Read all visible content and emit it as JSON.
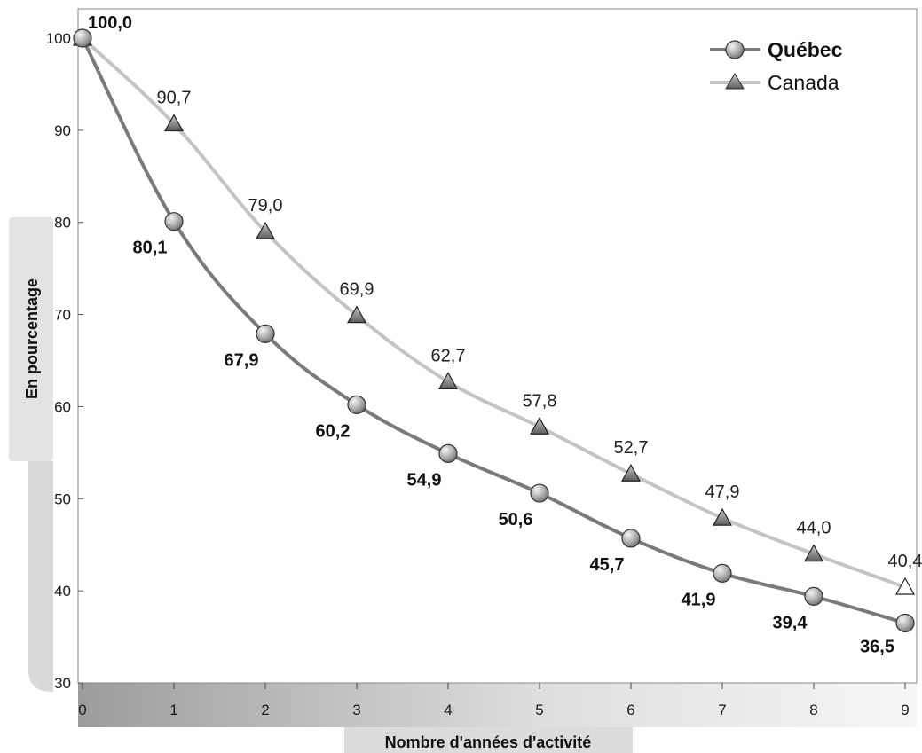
{
  "chart_data": {
    "type": "line",
    "title": "",
    "xlabel": "Nombre d'années d'activité",
    "ylabel": "En pourcentage",
    "x": [
      0,
      1,
      2,
      3,
      4,
      5,
      6,
      7,
      8,
      9
    ],
    "xlim": [
      0,
      9
    ],
    "ylim": [
      30,
      100
    ],
    "yticks": [
      30,
      40,
      50,
      60,
      70,
      80,
      90,
      100
    ],
    "grid": false,
    "legend_position": "top-right",
    "series": [
      {
        "name": "Québec",
        "marker": "circle",
        "color": "#7a7a7a",
        "values": [
          100.0,
          80.1,
          67.9,
          60.2,
          54.9,
          50.6,
          45.7,
          41.9,
          39.4,
          36.5
        ],
        "labels": [
          "100,0",
          "80,1",
          "67,9",
          "60,2",
          "54,9",
          "50,6",
          "45,7",
          "41,9",
          "39,4",
          "36,5"
        ]
      },
      {
        "name": "Canada",
        "marker": "triangle",
        "color": "#c4c4c4",
        "values": [
          100.0,
          90.7,
          79.0,
          69.9,
          62.7,
          57.8,
          52.7,
          47.9,
          44.0,
          40.4
        ],
        "labels": [
          "",
          "90,7",
          "79,0",
          "69,9",
          "62,7",
          "57,8",
          "52,7",
          "47,9",
          "44,0",
          "40,4"
        ]
      }
    ]
  }
}
